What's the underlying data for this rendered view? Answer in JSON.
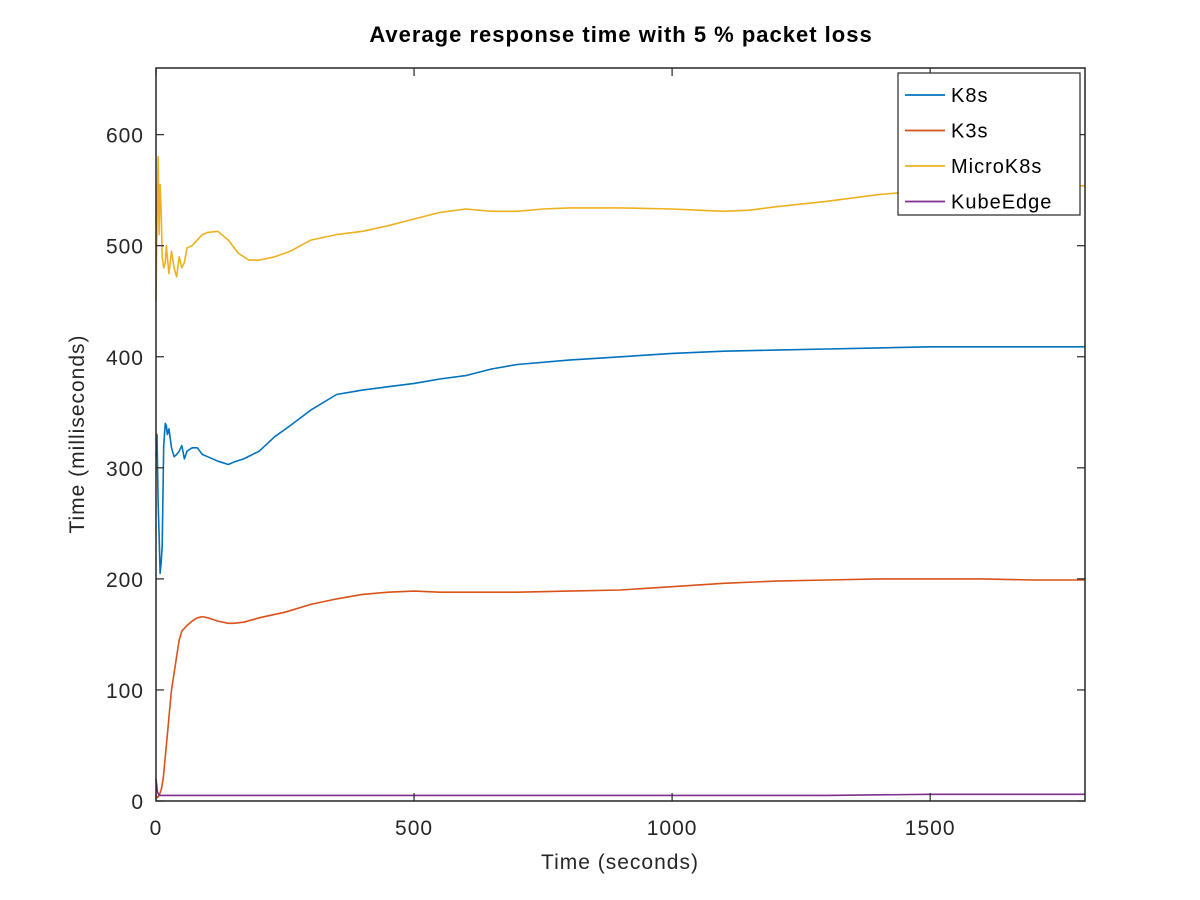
{
  "chart_data": {
    "type": "line",
    "title": "Average response time with 5 % packet loss",
    "xlabel": "Time (seconds)",
    "ylabel": "Time (milliseconds)",
    "xlim": [
      0,
      1800
    ],
    "ylim": [
      0,
      660
    ],
    "xticks": [
      0,
      500,
      1000,
      1500
    ],
    "yticks": [
      0,
      100,
      200,
      300,
      400,
      500,
      600
    ],
    "grid": false,
    "legend_position": "top-right",
    "series": [
      {
        "name": "K8s",
        "color": "#0072bd",
        "x": [
          0,
          2,
          4,
          6,
          8,
          10,
          12,
          15,
          18,
          20,
          22,
          25,
          28,
          30,
          35,
          40,
          45,
          50,
          55,
          60,
          70,
          80,
          90,
          100,
          120,
          140,
          150,
          170,
          200,
          230,
          260,
          300,
          350,
          400,
          450,
          500,
          550,
          600,
          650,
          700,
          800,
          900,
          1000,
          1100,
          1200,
          1300,
          1400,
          1500,
          1600,
          1700,
          1800
        ],
        "y": [
          310,
          330,
          270,
          240,
          205,
          215,
          230,
          320,
          340,
          338,
          330,
          335,
          325,
          318,
          310,
          312,
          315,
          320,
          308,
          315,
          318,
          318,
          312,
          310,
          306,
          303,
          305,
          308,
          315,
          328,
          338,
          352,
          366,
          370,
          373,
          376,
          380,
          383,
          389,
          393,
          397,
          400,
          403,
          405,
          406,
          407,
          408,
          409,
          409,
          409,
          409
        ]
      },
      {
        "name": "K3s",
        "color": "#d95319",
        "x": [
          0,
          3,
          6,
          10,
          14,
          18,
          22,
          26,
          30,
          35,
          40,
          45,
          50,
          60,
          70,
          80,
          90,
          100,
          120,
          140,
          150,
          170,
          200,
          250,
          300,
          350,
          400,
          450,
          500,
          550,
          600,
          700,
          800,
          900,
          1000,
          1100,
          1200,
          1300,
          1400,
          1500,
          1600,
          1700,
          1800
        ],
        "y": [
          5,
          3,
          5,
          10,
          20,
          40,
          60,
          80,
          100,
          115,
          130,
          145,
          153,
          158,
          162,
          165,
          166,
          165,
          162,
          160,
          160,
          161,
          165,
          170,
          177,
          182,
          186,
          188,
          189,
          188,
          188,
          188,
          189,
          190,
          193,
          196,
          198,
          199,
          200,
          200,
          200,
          199,
          199
        ]
      },
      {
        "name": "MicroK8s",
        "color": "#edb120",
        "x": [
          0,
          2,
          4,
          6,
          8,
          10,
          12,
          15,
          18,
          20,
          25,
          30,
          35,
          40,
          45,
          50,
          55,
          60,
          70,
          80,
          90,
          100,
          120,
          140,
          160,
          180,
          200,
          230,
          260,
          300,
          350,
          400,
          450,
          500,
          550,
          600,
          650,
          700,
          750,
          800,
          900,
          1000,
          1050,
          1100,
          1150,
          1200,
          1300,
          1400,
          1500,
          1600,
          1700,
          1800
        ],
        "y": [
          450,
          520,
          580,
          510,
          555,
          530,
          490,
          480,
          485,
          500,
          475,
          495,
          480,
          472,
          490,
          480,
          485,
          498,
          500,
          505,
          510,
          512,
          513,
          505,
          493,
          487,
          487,
          490,
          495,
          505,
          510,
          513,
          518,
          524,
          530,
          533,
          531,
          531,
          533,
          534,
          534,
          533,
          532,
          531,
          532,
          535,
          540,
          546,
          550,
          552,
          553,
          554
        ]
      },
      {
        "name": "KubeEdge",
        "color": "#7e2f8e",
        "x": [
          0,
          3,
          6,
          10,
          20,
          50,
          100,
          500,
          1000,
          1300,
          1500,
          1800
        ],
        "y": [
          20,
          8,
          5,
          5,
          5,
          5,
          5,
          5,
          5,
          5,
          6,
          6
        ]
      }
    ]
  }
}
